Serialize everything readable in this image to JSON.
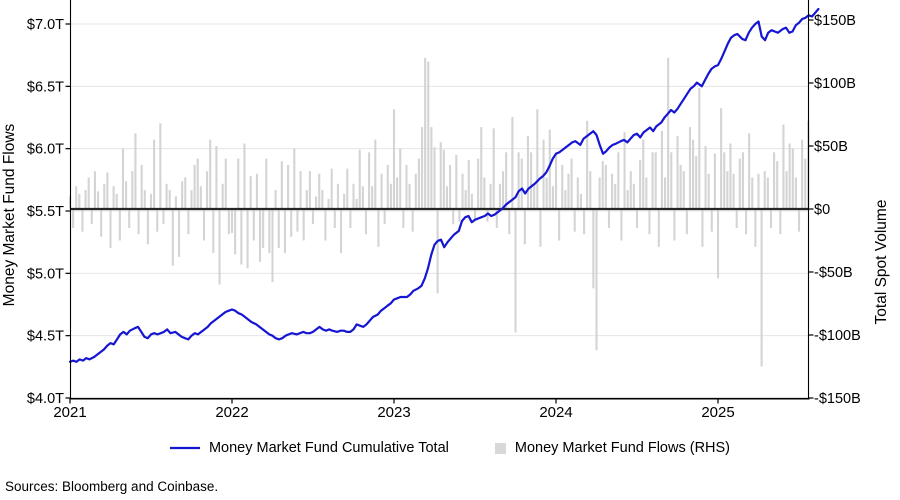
{
  "footer": {
    "sources": "Sources: Bloomberg and Coinbase."
  },
  "legend": [
    {
      "label": "Money Market Fund Cumulative Total",
      "swatch": "line",
      "color": "#1515d2"
    },
    {
      "label": "Money Market Fund Flows (RHS)",
      "swatch": "square",
      "color": "#d8d8d8"
    }
  ],
  "chart_data": {
    "type": "combo-line-bar",
    "title": "",
    "grid": "horizontal-only",
    "legend_position": "bottom-center",
    "x_axis": {
      "tick_labels": [
        "2021",
        "2022",
        "2023",
        "2024",
        "2025"
      ],
      "tick_values": [
        2021,
        2022,
        2023,
        2024,
        2025
      ],
      "range": [
        2021.0,
        2025.62
      ]
    },
    "left_axis": {
      "label": "Money Market Fund Flows",
      "unit": "trillions-USD",
      "tick_labels": [
        "$4.0T",
        "$4.5T",
        "$5.0T",
        "$5.5T",
        "$6.0T",
        "$6.5T",
        "$7.0T"
      ],
      "tick_values": [
        4.0,
        4.5,
        5.0,
        5.5,
        6.0,
        6.5,
        7.0
      ],
      "range": [
        4.0,
        7.19
      ]
    },
    "right_axis": {
      "label": "Total Spot Volume",
      "unit": "billions-USD",
      "tick_labels": [
        "-$150B",
        "-$100B",
        "-$50B",
        "$0",
        "$50B",
        "$100B",
        "$150B"
      ],
      "tick_values": [
        -150,
        -100,
        -50,
        0,
        50,
        100,
        150
      ],
      "range": [
        -150,
        166
      ]
    },
    "series": [
      {
        "name": "Money Market Fund Cumulative Total",
        "type": "line",
        "axis": "left",
        "color": "#1515d2",
        "points": [
          [
            2021.0,
            4.29
          ],
          [
            2021.02,
            4.3
          ],
          [
            2021.04,
            4.29
          ],
          [
            2021.06,
            4.31
          ],
          [
            2021.08,
            4.3
          ],
          [
            2021.1,
            4.32
          ],
          [
            2021.12,
            4.31
          ],
          [
            2021.15,
            4.33
          ],
          [
            2021.17,
            4.35
          ],
          [
            2021.19,
            4.37
          ],
          [
            2021.21,
            4.39
          ],
          [
            2021.23,
            4.42
          ],
          [
            2021.25,
            4.44
          ],
          [
            2021.27,
            4.43
          ],
          [
            2021.29,
            4.47
          ],
          [
            2021.31,
            4.51
          ],
          [
            2021.33,
            4.53
          ],
          [
            2021.35,
            4.51
          ],
          [
            2021.37,
            4.54
          ],
          [
            2021.4,
            4.56
          ],
          [
            2021.42,
            4.57
          ],
          [
            2021.44,
            4.53
          ],
          [
            2021.46,
            4.49
          ],
          [
            2021.48,
            4.48
          ],
          [
            2021.5,
            4.51
          ],
          [
            2021.52,
            4.52
          ],
          [
            2021.54,
            4.51
          ],
          [
            2021.56,
            4.52
          ],
          [
            2021.58,
            4.53
          ],
          [
            2021.6,
            4.55
          ],
          [
            2021.62,
            4.52
          ],
          [
            2021.65,
            4.53
          ],
          [
            2021.67,
            4.51
          ],
          [
            2021.69,
            4.49
          ],
          [
            2021.71,
            4.48
          ],
          [
            2021.73,
            4.47
          ],
          [
            2021.75,
            4.5
          ],
          [
            2021.77,
            4.52
          ],
          [
            2021.79,
            4.51
          ],
          [
            2021.81,
            4.53
          ],
          [
            2021.83,
            4.55
          ],
          [
            2021.85,
            4.57
          ],
          [
            2021.87,
            4.6
          ],
          [
            2021.9,
            4.63
          ],
          [
            2021.92,
            4.65
          ],
          [
            2021.94,
            4.67
          ],
          [
            2021.96,
            4.69
          ],
          [
            2021.98,
            4.7
          ],
          [
            2022.0,
            4.71
          ],
          [
            2022.02,
            4.7
          ],
          [
            2022.04,
            4.68
          ],
          [
            2022.06,
            4.67
          ],
          [
            2022.08,
            4.65
          ],
          [
            2022.1,
            4.63
          ],
          [
            2022.12,
            4.61
          ],
          [
            2022.15,
            4.59
          ],
          [
            2022.17,
            4.57
          ],
          [
            2022.19,
            4.55
          ],
          [
            2022.21,
            4.53
          ],
          [
            2022.23,
            4.51
          ],
          [
            2022.25,
            4.5
          ],
          [
            2022.27,
            4.48
          ],
          [
            2022.29,
            4.47
          ],
          [
            2022.31,
            4.48
          ],
          [
            2022.33,
            4.5
          ],
          [
            2022.35,
            4.51
          ],
          [
            2022.37,
            4.52
          ],
          [
            2022.4,
            4.51
          ],
          [
            2022.42,
            4.52
          ],
          [
            2022.44,
            4.53
          ],
          [
            2022.46,
            4.52
          ],
          [
            2022.48,
            4.52
          ],
          [
            2022.5,
            4.53
          ],
          [
            2022.52,
            4.55
          ],
          [
            2022.54,
            4.57
          ],
          [
            2022.56,
            4.55
          ],
          [
            2022.58,
            4.54
          ],
          [
            2022.6,
            4.55
          ],
          [
            2022.62,
            4.54
          ],
          [
            2022.65,
            4.53
          ],
          [
            2022.67,
            4.54
          ],
          [
            2022.69,
            4.54
          ],
          [
            2022.71,
            4.53
          ],
          [
            2022.73,
            4.53
          ],
          [
            2022.75,
            4.55
          ],
          [
            2022.77,
            4.59
          ],
          [
            2022.79,
            4.58
          ],
          [
            2022.81,
            4.57
          ],
          [
            2022.83,
            4.59
          ],
          [
            2022.85,
            4.62
          ],
          [
            2022.87,
            4.65
          ],
          [
            2022.9,
            4.67
          ],
          [
            2022.92,
            4.7
          ],
          [
            2022.94,
            4.72
          ],
          [
            2022.96,
            4.74
          ],
          [
            2022.98,
            4.76
          ],
          [
            2023.0,
            4.79
          ],
          [
            2023.02,
            4.8
          ],
          [
            2023.04,
            4.81
          ],
          [
            2023.06,
            4.81
          ],
          [
            2023.08,
            4.81
          ],
          [
            2023.1,
            4.83
          ],
          [
            2023.12,
            4.86
          ],
          [
            2023.15,
            4.88
          ],
          [
            2023.17,
            4.9
          ],
          [
            2023.19,
            4.96
          ],
          [
            2023.21,
            5.04
          ],
          [
            2023.23,
            5.15
          ],
          [
            2023.25,
            5.23
          ],
          [
            2023.27,
            5.26
          ],
          [
            2023.29,
            5.27
          ],
          [
            2023.31,
            5.21
          ],
          [
            2023.33,
            5.25
          ],
          [
            2023.35,
            5.28
          ],
          [
            2023.37,
            5.31
          ],
          [
            2023.4,
            5.34
          ],
          [
            2023.42,
            5.42
          ],
          [
            2023.44,
            5.45
          ],
          [
            2023.46,
            5.46
          ],
          [
            2023.48,
            5.41
          ],
          [
            2023.5,
            5.43
          ],
          [
            2023.52,
            5.44
          ],
          [
            2023.54,
            5.45
          ],
          [
            2023.56,
            5.46
          ],
          [
            2023.58,
            5.48
          ],
          [
            2023.6,
            5.46
          ],
          [
            2023.62,
            5.47
          ],
          [
            2023.65,
            5.5
          ],
          [
            2023.67,
            5.52
          ],
          [
            2023.69,
            5.55
          ],
          [
            2023.71,
            5.57
          ],
          [
            2023.73,
            5.59
          ],
          [
            2023.75,
            5.61
          ],
          [
            2023.77,
            5.66
          ],
          [
            2023.79,
            5.68
          ],
          [
            2023.81,
            5.64
          ],
          [
            2023.83,
            5.68
          ],
          [
            2023.85,
            5.7
          ],
          [
            2023.87,
            5.72
          ],
          [
            2023.9,
            5.76
          ],
          [
            2023.92,
            5.78
          ],
          [
            2023.94,
            5.81
          ],
          [
            2023.96,
            5.86
          ],
          [
            2023.98,
            5.92
          ],
          [
            2024.0,
            5.96
          ],
          [
            2024.02,
            5.97
          ],
          [
            2024.04,
            5.99
          ],
          [
            2024.06,
            6.01
          ],
          [
            2024.08,
            6.03
          ],
          [
            2024.1,
            6.05
          ],
          [
            2024.12,
            6.06
          ],
          [
            2024.15,
            6.03
          ],
          [
            2024.17,
            6.08
          ],
          [
            2024.19,
            6.1
          ],
          [
            2024.21,
            6.12
          ],
          [
            2024.23,
            6.14
          ],
          [
            2024.25,
            6.11
          ],
          [
            2024.27,
            6.03
          ],
          [
            2024.29,
            5.96
          ],
          [
            2024.31,
            5.98
          ],
          [
            2024.33,
            6.01
          ],
          [
            2024.35,
            6.03
          ],
          [
            2024.37,
            6.04
          ],
          [
            2024.4,
            6.06
          ],
          [
            2024.42,
            6.07
          ],
          [
            2024.44,
            6.05
          ],
          [
            2024.46,
            6.08
          ],
          [
            2024.48,
            6.11
          ],
          [
            2024.5,
            6.12
          ],
          [
            2024.52,
            6.09
          ],
          [
            2024.54,
            6.13
          ],
          [
            2024.56,
            6.15
          ],
          [
            2024.58,
            6.17
          ],
          [
            2024.6,
            6.14
          ],
          [
            2024.62,
            6.18
          ],
          [
            2024.65,
            6.21
          ],
          [
            2024.67,
            6.25
          ],
          [
            2024.69,
            6.28
          ],
          [
            2024.71,
            6.31
          ],
          [
            2024.73,
            6.29
          ],
          [
            2024.75,
            6.32
          ],
          [
            2024.77,
            6.36
          ],
          [
            2024.79,
            6.4
          ],
          [
            2024.81,
            6.44
          ],
          [
            2024.83,
            6.48
          ],
          [
            2024.85,
            6.5
          ],
          [
            2024.87,
            6.53
          ],
          [
            2024.9,
            6.5
          ],
          [
            2024.92,
            6.55
          ],
          [
            2024.94,
            6.6
          ],
          [
            2024.96,
            6.64
          ],
          [
            2024.98,
            6.66
          ],
          [
            2025.0,
            6.67
          ],
          [
            2025.02,
            6.72
          ],
          [
            2025.04,
            6.78
          ],
          [
            2025.06,
            6.84
          ],
          [
            2025.08,
            6.89
          ],
          [
            2025.1,
            6.91
          ],
          [
            2025.12,
            6.92
          ],
          [
            2025.15,
            6.88
          ],
          [
            2025.17,
            6.87
          ],
          [
            2025.19,
            6.93
          ],
          [
            2025.21,
            6.97
          ],
          [
            2025.23,
            7.0
          ],
          [
            2025.25,
            7.02
          ],
          [
            2025.27,
            6.9
          ],
          [
            2025.29,
            6.87
          ],
          [
            2025.31,
            6.93
          ],
          [
            2025.33,
            6.95
          ],
          [
            2025.35,
            6.94
          ],
          [
            2025.37,
            6.93
          ],
          [
            2025.4,
            6.96
          ],
          [
            2025.42,
            6.97
          ],
          [
            2025.44,
            6.93
          ],
          [
            2025.46,
            6.94
          ],
          [
            2025.48,
            6.99
          ],
          [
            2025.5,
            7.01
          ],
          [
            2025.52,
            7.04
          ],
          [
            2025.54,
            7.05
          ],
          [
            2025.56,
            7.07
          ],
          [
            2025.58,
            7.06
          ],
          [
            2025.6,
            7.09
          ],
          [
            2025.62,
            7.12
          ]
        ]
      },
      {
        "name": "Money Market Fund Flows (RHS)",
        "type": "bar",
        "axis": "right",
        "color": "#d4d4d4",
        "start_year": 2021.0,
        "step_years": 0.019231,
        "values": [
          10,
          -15,
          18,
          12,
          -18,
          15,
          25,
          -12,
          30,
          14,
          -22,
          20,
          29,
          -31,
          18,
          12,
          -25,
          48,
          22,
          -15,
          30,
          60,
          -20,
          35,
          15,
          -28,
          12,
          55,
          -18,
          68,
          -12,
          20,
          15,
          -45,
          10,
          -38,
          22,
          25,
          -20,
          15,
          35,
          40,
          18,
          -25,
          30,
          55,
          -35,
          50,
          -60,
          20,
          40,
          -20,
          -19,
          -36,
          40,
          -44,
          52,
          -47,
          26,
          -25,
          28,
          -42,
          -31,
          40,
          -35,
          -58,
          15,
          -31,
          38,
          -35,
          35,
          -22,
          48,
          -18,
          30,
          -25,
          15,
          30,
          -12,
          10,
          28,
          15,
          -25,
          8,
          32,
          -15,
          20,
          -35,
          12,
          32,
          -15,
          20,
          8,
          47,
          18,
          -20,
          45,
          18,
          55,
          -30,
          28,
          -12,
          35,
          20,
          79,
          25,
          48,
          -15,
          35,
          20,
          -18,
          28,
          40,
          65,
          120,
          117,
          65,
          49,
          -67,
          53,
          47,
          18,
          35,
          -12,
          43,
          -10,
          28,
          15,
          39,
          12,
          -8,
          40,
          65,
          25,
          -10,
          20,
          64,
          -15,
          20,
          30,
          45,
          -20,
          73,
          -98,
          45,
          40,
          -28,
          58,
          45,
          20,
          79,
          -30,
          55,
          25,
          63,
          18,
          43,
          -25,
          35,
          15,
          28,
          40,
          -18,
          25,
          12,
          -20,
          70,
          30,
          -63,
          -112,
          25,
          38,
          35,
          -15,
          28,
          20,
          45,
          -25,
          61,
          15,
          30,
          20,
          -15,
          39,
          55,
          25,
          -20,
          45,
          45,
          -30,
          62,
          25,
          120,
          45,
          -25,
          58,
          35,
          30,
          -20,
          65,
          55,
          42,
          96,
          -30,
          50,
          28,
          -18,
          44,
          -55,
          80,
          45,
          30,
          52,
          28,
          -15,
          40,
          45,
          -20,
          60,
          25,
          -30,
          28,
          -125,
          30,
          25,
          -15,
          45,
          38,
          -20,
          67,
          30,
          52,
          48,
          25,
          -18,
          55,
          40,
          70
        ]
      }
    ]
  }
}
